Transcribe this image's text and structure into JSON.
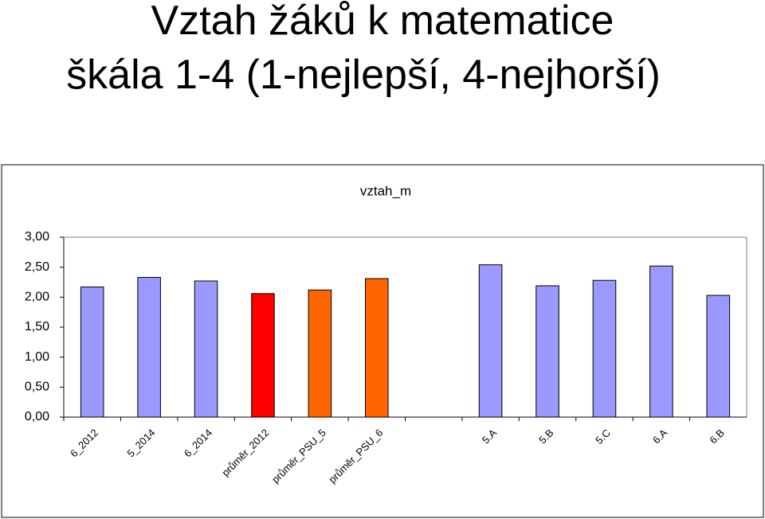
{
  "header": {
    "title": "Vztah žáků k matematice",
    "subtitle": "škála 1-4 (1-nejlepší, 4-nejhorší)"
  },
  "chart_data": {
    "type": "bar",
    "title": "vztah_m",
    "categories": [
      "6_2012",
      "5_2014",
      "6_2014",
      "průměr_2012",
      "průměr_PSU_5",
      "průměr_PSU_6",
      null,
      "5.A",
      "5.B",
      "5.C",
      "6.A",
      "6.B"
    ],
    "values": [
      2.17,
      2.33,
      2.27,
      2.06,
      2.12,
      2.31,
      null,
      2.54,
      2.19,
      2.28,
      2.52,
      2.03
    ],
    "colors": [
      "#9999ff",
      "#9999ff",
      "#9999ff",
      "#ff0000",
      "#ff6600",
      "#ff6600",
      null,
      "#9999ff",
      "#9999ff",
      "#9999ff",
      "#9999ff",
      "#9999ff"
    ],
    "ylim": [
      0,
      3
    ],
    "yticks": [
      {
        "value": 0,
        "label": "0,00"
      },
      {
        "value": 0.5,
        "label": "0,50"
      },
      {
        "value": 1,
        "label": "1,00"
      },
      {
        "value": 1.5,
        "label": "1,50"
      },
      {
        "value": 2,
        "label": "2,00"
      },
      {
        "value": 2.5,
        "label": "2,50"
      },
      {
        "value": 3,
        "label": "3,00"
      }
    ],
    "grid": false
  }
}
